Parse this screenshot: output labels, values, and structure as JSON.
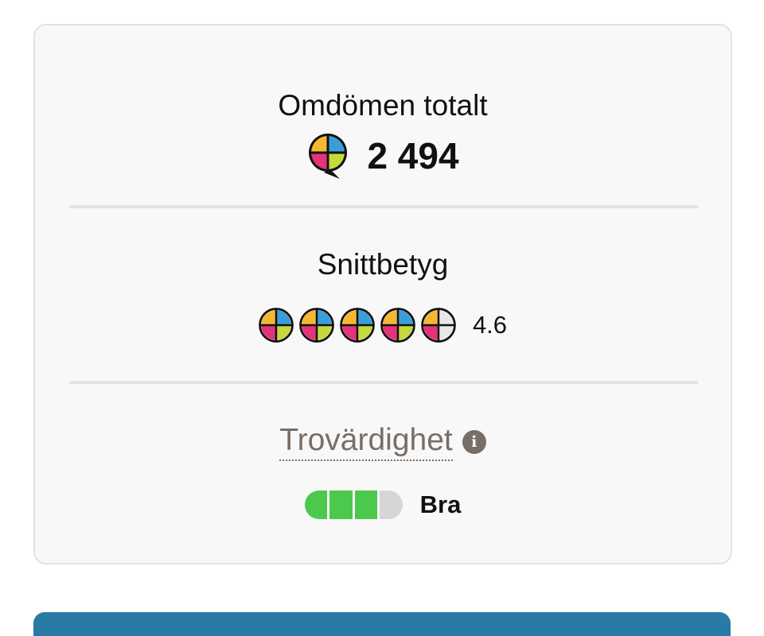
{
  "reviews_total": {
    "title": "Omdömen totalt",
    "count": "2 494",
    "icon": "speech-bubble-quad-logo-icon"
  },
  "average": {
    "title": "Snittbetyg",
    "rating": 4.6,
    "rating_label": "4.6",
    "max": 5
  },
  "trust": {
    "title": "Trovärdighet",
    "info_icon": "i",
    "level": 3,
    "levels": 4,
    "label": "Bra"
  },
  "colors": {
    "yellow": "#f6b833",
    "blue": "#3a9ed9",
    "pink": "#e2337b",
    "green": "#c5d93c",
    "empty": "#e8e8e8",
    "trust_on": "#4cc94c",
    "trust_off": "#d6d6d6",
    "muted": "#786e66"
  }
}
